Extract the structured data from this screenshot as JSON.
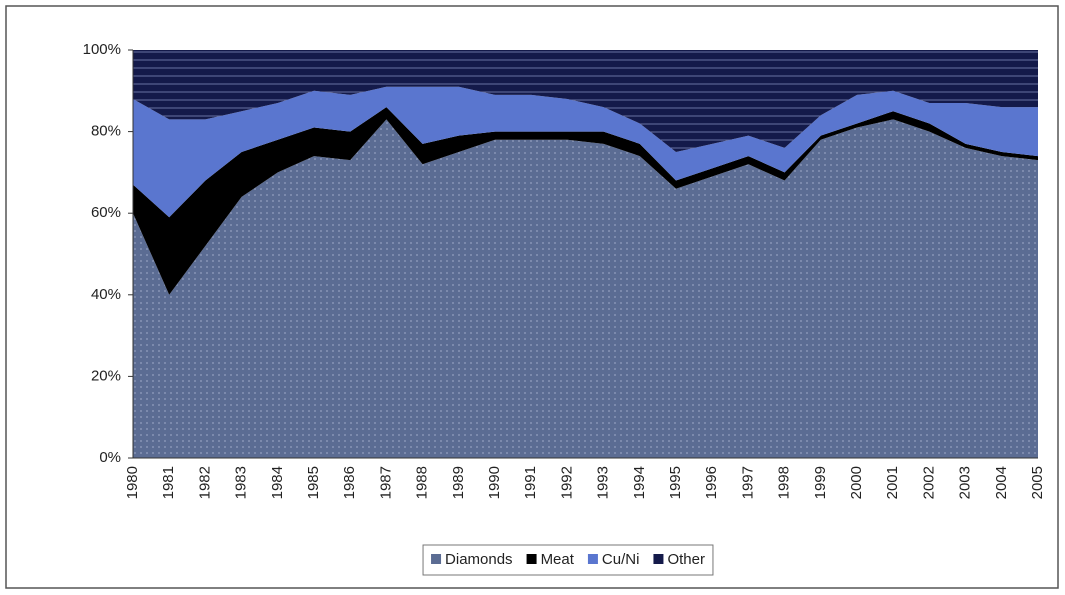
{
  "chart_data": {
    "type": "stacked-area",
    "categories": [
      "1980",
      "1981",
      "1982",
      "1983",
      "1984",
      "1985",
      "1986",
      "1987",
      "1988",
      "1989",
      "1990",
      "1991",
      "1992",
      "1993",
      "1994",
      "1995",
      "1996",
      "1997",
      "1998",
      "1999",
      "2000",
      "2001",
      "2002",
      "2003",
      "2004",
      "2005"
    ],
    "series": [
      {
        "name": "Diamonds",
        "color": "#5b6c93",
        "values": [
          60,
          40,
          52,
          64,
          70,
          74,
          73,
          83,
          72,
          75,
          78,
          78,
          78,
          77,
          74,
          66,
          69,
          72,
          68,
          78,
          81,
          83,
          80,
          76,
          74,
          73
        ]
      },
      {
        "name": "Meat",
        "color": "#000000",
        "values": [
          7,
          19,
          16,
          11,
          8,
          7,
          7,
          3,
          5,
          4,
          2,
          2,
          2,
          3,
          3,
          2,
          2,
          2,
          2,
          1,
          1,
          2,
          2,
          1,
          1,
          1
        ]
      },
      {
        "name": "Cu/Ni",
        "color": "#5a76cf",
        "values": [
          21,
          24,
          15,
          10,
          9,
          9,
          9,
          5,
          14,
          12,
          9,
          9,
          8,
          6,
          5,
          7,
          6,
          5,
          6,
          5,
          7,
          5,
          5,
          10,
          11,
          12
        ]
      },
      {
        "name": "Other",
        "color": "#141a4a",
        "values": [
          12,
          17,
          17,
          15,
          13,
          10,
          11,
          9,
          9,
          9,
          11,
          11,
          12,
          14,
          18,
          25,
          23,
          21,
          24,
          16,
          11,
          10,
          13,
          13,
          14,
          14
        ]
      }
    ],
    "ylim": [
      0,
      100
    ],
    "yticks": [
      {
        "value": 0,
        "label": "0%"
      },
      {
        "value": 20,
        "label": "20%"
      },
      {
        "value": 40,
        "label": "40%"
      },
      {
        "value": 60,
        "label": "60%"
      },
      {
        "value": 80,
        "label": "80%"
      },
      {
        "value": 100,
        "label": "100%"
      }
    ],
    "legend": "bottom"
  }
}
